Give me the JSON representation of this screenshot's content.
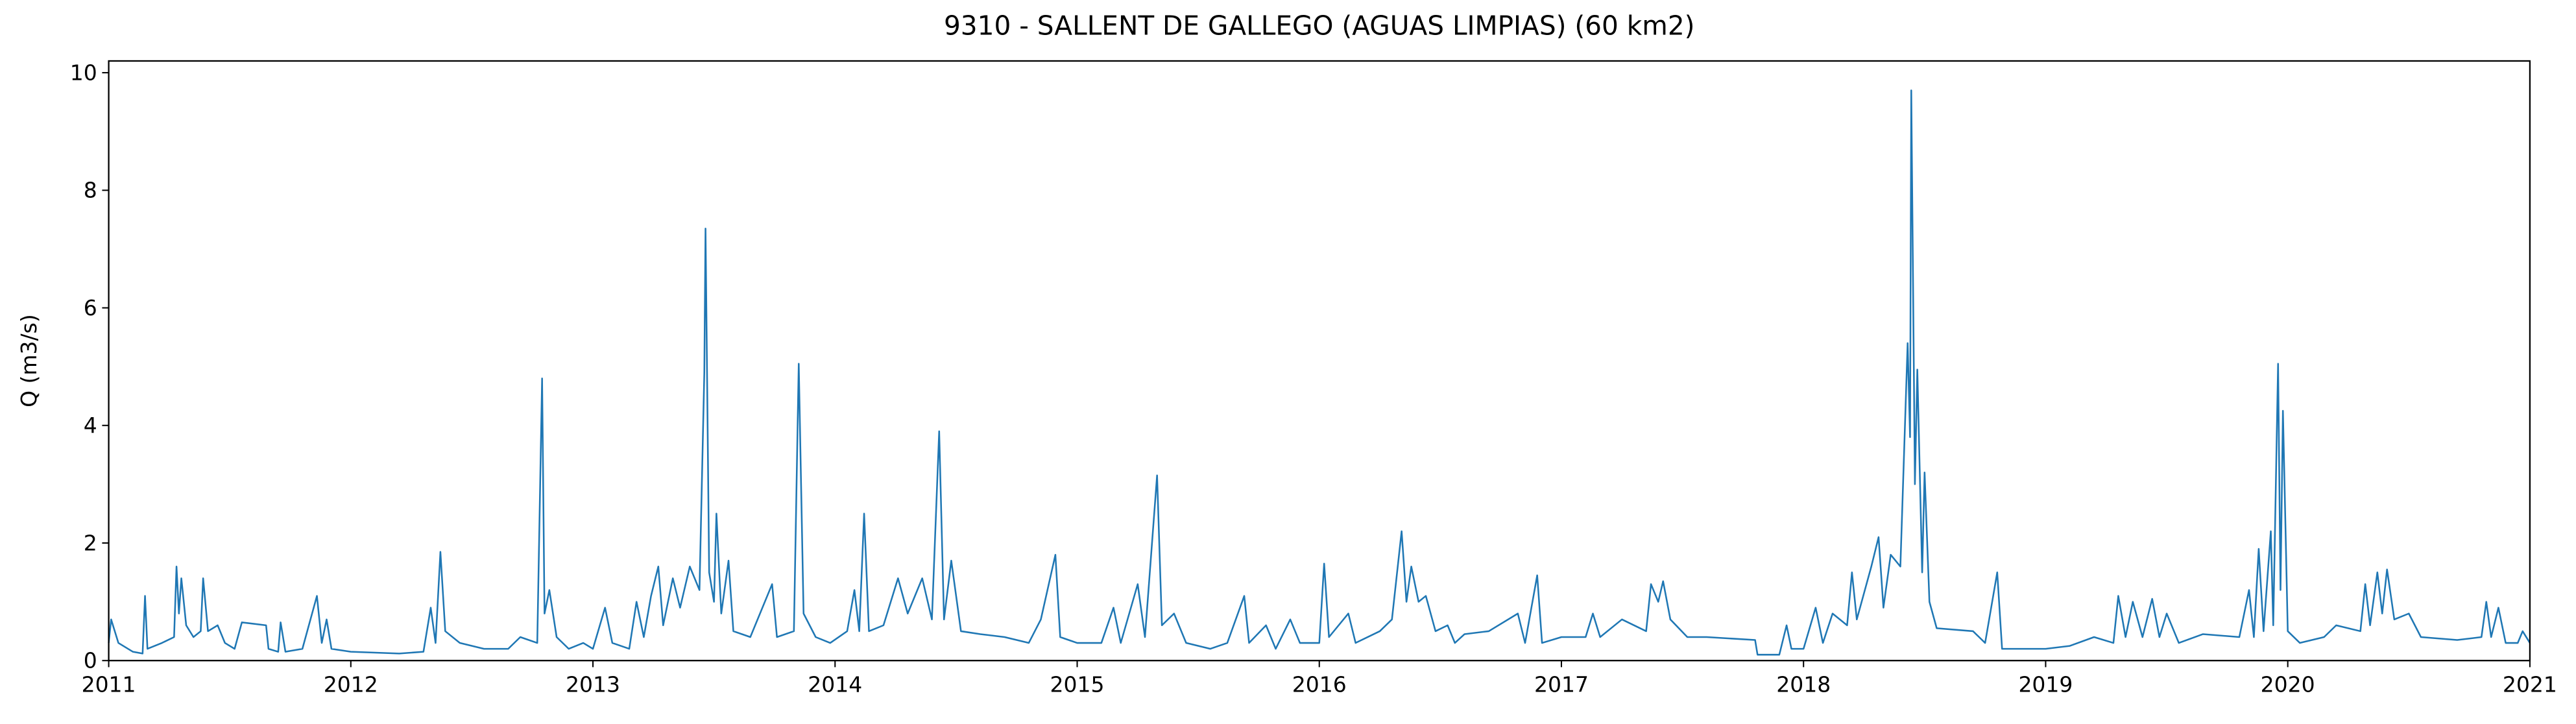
{
  "chart_data": {
    "type": "line",
    "title": "9310 - SALLENT DE GALLEGO (AGUAS LIMPIAS) (60 km2)",
    "y_label": "Q (m3/s)",
    "xlim": [
      2011,
      2021
    ],
    "xticks": [
      2011,
      2012,
      2013,
      2014,
      2015,
      2016,
      2017,
      2018,
      2019,
      2020,
      2021
    ],
    "ylim": [
      0,
      10.2
    ],
    "yticks": [
      0,
      2,
      4,
      6,
      8,
      10
    ],
    "x": [
      2011.0,
      2011.01,
      2011.04,
      2011.1,
      2011.14,
      2011.15,
      2011.16,
      2011.22,
      2011.27,
      2011.28,
      2011.29,
      2011.3,
      2011.32,
      2011.35,
      2011.38,
      2011.39,
      2011.41,
      2011.45,
      2011.48,
      2011.52,
      2011.55,
      2011.65,
      2011.66,
      2011.7,
      2011.71,
      2011.73,
      2011.8,
      2011.86,
      2011.88,
      2011.9,
      2011.92,
      2012.0,
      2012.2,
      2012.3,
      2012.33,
      2012.35,
      2012.37,
      2012.39,
      2012.45,
      2012.55,
      2012.65,
      2012.7,
      2012.77,
      2012.79,
      2012.8,
      2012.82,
      2012.85,
      2012.9,
      2012.96,
      2013.0,
      2013.05,
      2013.08,
      2013.15,
      2013.18,
      2013.21,
      2013.24,
      2013.27,
      2013.29,
      2013.33,
      2013.36,
      2013.4,
      2013.44,
      2013.46,
      2013.465,
      2013.48,
      2013.5,
      2013.51,
      2013.53,
      2013.56,
      2013.58,
      2013.65,
      2013.74,
      2013.76,
      2013.83,
      2013.85,
      2013.87,
      2013.92,
      2013.98,
      2014.05,
      2014.08,
      2014.1,
      2014.12,
      2014.14,
      2014.2,
      2014.26,
      2014.3,
      2014.36,
      2014.4,
      2014.43,
      2014.45,
      2014.48,
      2014.52,
      2014.6,
      2014.7,
      2014.8,
      2014.85,
      2014.91,
      2014.93,
      2015.0,
      2015.1,
      2015.15,
      2015.18,
      2015.25,
      2015.28,
      2015.33,
      2015.35,
      2015.4,
      2015.45,
      2015.55,
      2015.62,
      2015.69,
      2015.71,
      2015.78,
      2015.82,
      2015.88,
      2015.92,
      2016.0,
      2016.02,
      2016.04,
      2016.12,
      2016.15,
      2016.25,
      2016.3,
      2016.34,
      2016.36,
      2016.38,
      2016.41,
      2016.44,
      2016.48,
      2016.53,
      2016.56,
      2016.6,
      2016.7,
      2016.82,
      2016.85,
      2016.9,
      2016.92,
      2017.0,
      2017.1,
      2017.13,
      2017.16,
      2017.25,
      2017.35,
      2017.37,
      2017.4,
      2017.42,
      2017.45,
      2017.52,
      2017.6,
      2017.8,
      2017.81,
      2017.9,
      2017.93,
      2017.95,
      2018.0,
      2018.05,
      2018.08,
      2018.12,
      2018.18,
      2018.2,
      2018.22,
      2018.28,
      2018.31,
      2018.33,
      2018.36,
      2018.4,
      2018.43,
      2018.44,
      2018.445,
      2018.46,
      2018.47,
      2018.49,
      2018.5,
      2018.52,
      2018.55,
      2018.7,
      2018.75,
      2018.8,
      2018.82,
      2018.9,
      2019.0,
      2019.1,
      2019.2,
      2019.28,
      2019.3,
      2019.33,
      2019.36,
      2019.4,
      2019.44,
      2019.47,
      2019.5,
      2019.55,
      2019.65,
      2019.8,
      2019.84,
      2019.86,
      2019.88,
      2019.9,
      2019.93,
      2019.94,
      2019.96,
      2019.97,
      2019.98,
      2020.0,
      2020.05,
      2020.15,
      2020.2,
      2020.3,
      2020.32,
      2020.34,
      2020.37,
      2020.39,
      2020.41,
      2020.44,
      2020.5,
      2020.55,
      2020.7,
      2020.8,
      2020.82,
      2020.84,
      2020.87,
      2020.9,
      2020.95,
      2020.97,
      2021.0
    ],
    "series": [
      {
        "name": "Q",
        "color": "#1f77b4",
        "values": [
          0.3,
          0.7,
          0.3,
          0.15,
          0.12,
          1.1,
          0.2,
          0.3,
          0.4,
          1.6,
          0.8,
          1.4,
          0.6,
          0.4,
          0.5,
          1.4,
          0.5,
          0.6,
          0.3,
          0.2,
          0.65,
          0.6,
          0.2,
          0.15,
          0.65,
          0.15,
          0.2,
          1.1,
          0.3,
          0.7,
          0.2,
          0.15,
          0.12,
          0.15,
          0.9,
          0.3,
          1.85,
          0.5,
          0.3,
          0.2,
          0.2,
          0.4,
          0.3,
          4.8,
          0.8,
          1.2,
          0.4,
          0.2,
          0.3,
          0.2,
          0.9,
          0.3,
          0.2,
          1.0,
          0.4,
          1.1,
          1.6,
          0.6,
          1.4,
          0.9,
          1.6,
          1.2,
          4.9,
          7.35,
          1.5,
          1.0,
          2.5,
          0.8,
          1.7,
          0.5,
          0.4,
          1.3,
          0.4,
          0.5,
          5.05,
          0.8,
          0.4,
          0.3,
          0.5,
          1.2,
          0.5,
          2.5,
          0.5,
          0.6,
          1.4,
          0.8,
          1.4,
          0.7,
          3.9,
          0.7,
          1.7,
          0.5,
          0.45,
          0.4,
          0.3,
          0.7,
          1.8,
          0.4,
          0.3,
          0.3,
          0.9,
          0.3,
          1.3,
          0.4,
          3.15,
          0.6,
          0.8,
          0.3,
          0.2,
          0.3,
          1.1,
          0.3,
          0.6,
          0.2,
          0.7,
          0.3,
          0.3,
          1.65,
          0.4,
          0.8,
          0.3,
          0.5,
          0.7,
          2.2,
          1.0,
          1.6,
          1.0,
          1.1,
          0.5,
          0.6,
          0.3,
          0.45,
          0.5,
          0.8,
          0.3,
          1.45,
          0.3,
          0.4,
          0.4,
          0.8,
          0.4,
          0.7,
          0.5,
          1.3,
          1.0,
          1.35,
          0.7,
          0.4,
          0.4,
          0.35,
          0.1,
          0.1,
          0.6,
          0.2,
          0.2,
          0.9,
          0.3,
          0.8,
          0.6,
          1.5,
          0.7,
          1.6,
          2.1,
          0.9,
          1.8,
          1.6,
          5.4,
          3.8,
          9.7,
          3.0,
          4.95,
          1.5,
          3.2,
          1.0,
          0.55,
          0.5,
          0.3,
          1.5,
          0.2,
          0.2,
          0.2,
          0.25,
          0.4,
          0.3,
          1.1,
          0.4,
          1.0,
          0.4,
          1.05,
          0.4,
          0.8,
          0.3,
          0.45,
          0.4,
          1.2,
          0.4,
          1.9,
          0.5,
          2.2,
          0.6,
          5.05,
          1.2,
          4.25,
          0.5,
          0.3,
          0.4,
          0.6,
          0.5,
          1.3,
          0.6,
          1.5,
          0.8,
          1.55,
          0.7,
          0.8,
          0.4,
          0.35,
          0.4,
          1.0,
          0.4,
          0.9,
          0.3,
          0.3,
          0.5,
          0.3
        ]
      }
    ]
  }
}
